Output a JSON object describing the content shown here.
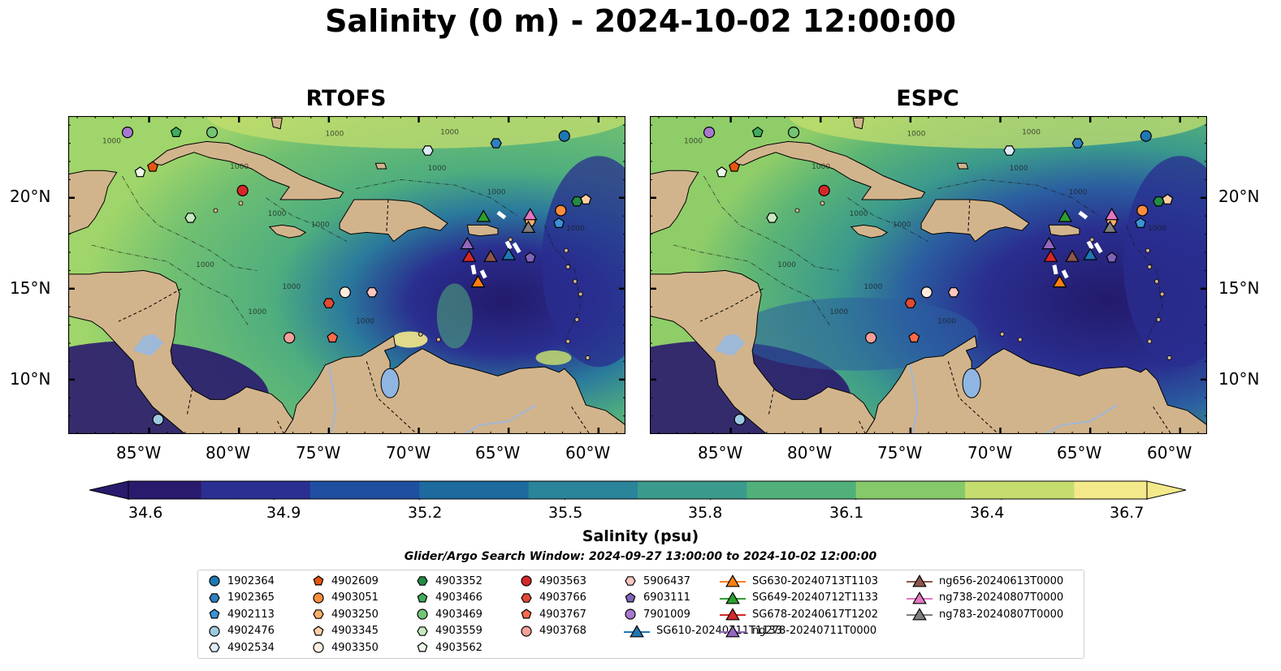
{
  "title": "Salinity (0 m) - 2024-10-02 12:00:00",
  "panels": [
    {
      "title": "RTOFS"
    },
    {
      "title": "ESPC"
    }
  ],
  "map": {
    "lon_range": [
      -89.5,
      -58.5
    ],
    "lat_range": [
      7.0,
      24.5
    ],
    "lon_ticks": [
      "85°W",
      "80°W",
      "75°W",
      "70°W",
      "65°W",
      "60°W"
    ],
    "lon_tick_values": [
      -85,
      -80,
      -75,
      -70,
      -65,
      -60
    ],
    "lat_ticks": [
      "20°N",
      "15°N",
      "10°N"
    ],
    "lat_tick_values": [
      20,
      15,
      10
    ],
    "land_color": "#d2b48c",
    "contour_label": "1000"
  },
  "colorbar": {
    "label": "Salinity (psu)",
    "min": 34.6,
    "max": 36.7,
    "ticks": [
      "34.6",
      "34.9",
      "35.2",
      "35.5",
      "35.8",
      "36.1",
      "36.4",
      "36.7"
    ],
    "colors": [
      "#2a1a6e",
      "#2b2f91",
      "#1f4fa0",
      "#1d6a9e",
      "#2a849a",
      "#3a9b8c",
      "#51b07a",
      "#86c96a",
      "#c4dd6e",
      "#f4e98a"
    ],
    "extend": "both"
  },
  "search_window": "Glider/Argo Search Window: 2024-09-27 13:00:00 to 2024-10-02 12:00:00",
  "legend": [
    {
      "label": "1902364",
      "marker": "circle",
      "color": "#1f77b4",
      "lon": -61.9,
      "lat": 23.4
    },
    {
      "label": "1902365",
      "marker": "hexagon",
      "color": "#2f80c0",
      "lon": -65.7,
      "lat": 23.0
    },
    {
      "label": "4902113",
      "marker": "pentagon",
      "color": "#3a93d6",
      "lon": -62.2,
      "lat": 18.6
    },
    {
      "label": "4902476",
      "marker": "circle",
      "color": "#9ecae1",
      "lon": -84.5,
      "lat": 7.8
    },
    {
      "label": "4902534",
      "marker": "hexagon",
      "color": "#deebf7",
      "lon": -69.5,
      "lat": 22.6
    },
    {
      "label": "4902609",
      "marker": "pentagon",
      "color": "#e6550d",
      "lon": -84.8,
      "lat": 21.7
    },
    {
      "label": "4903051",
      "marker": "circle",
      "color": "#fd8d3c",
      "lon": -62.1,
      "lat": 19.3
    },
    {
      "label": "4903250",
      "marker": "hexagon",
      "color": "#fdae6b",
      "lon": -63.8,
      "lat": 18.7
    },
    {
      "label": "4903345",
      "marker": "pentagon",
      "color": "#fdd0a2",
      "lon": -60.7,
      "lat": 19.9
    },
    {
      "label": "4903350",
      "marker": "circle",
      "color": "#feedde",
      "lon": -74.1,
      "lat": 14.8
    },
    {
      "label": "4903352",
      "marker": "hexagon",
      "color": "#238b45",
      "lon": -61.2,
      "lat": 19.8
    },
    {
      "label": "4903466",
      "marker": "pentagon",
      "color": "#41ab5d",
      "lon": -83.5,
      "lat": 23.6
    },
    {
      "label": "4903469",
      "marker": "circle",
      "color": "#74c476",
      "lon": -81.5,
      "lat": 23.6
    },
    {
      "label": "4903559",
      "marker": "hexagon",
      "color": "#c7e9c0",
      "lon": -82.7,
      "lat": 18.9
    },
    {
      "label": "4903562",
      "marker": "pentagon",
      "color": "#edf8e9",
      "lon": -85.5,
      "lat": 21.4
    },
    {
      "label": "4903563",
      "marker": "circle",
      "color": "#d62728",
      "lon": -79.8,
      "lat": 20.4
    },
    {
      "label": "4903766",
      "marker": "hexagon",
      "color": "#e34a33",
      "lon": -75.0,
      "lat": 14.2
    },
    {
      "label": "4903767",
      "marker": "pentagon",
      "color": "#fb6a4a",
      "lon": -74.8,
      "lat": 12.3
    },
    {
      "label": "4903768",
      "marker": "circle",
      "color": "#f4a09a",
      "lon": -77.2,
      "lat": 12.3
    },
    {
      "label": "5906437",
      "marker": "hexagon",
      "color": "#fcc5c0",
      "lon": -72.6,
      "lat": 14.8
    },
    {
      "label": "6903111",
      "marker": "pentagon",
      "color": "#8064b8",
      "lon": -63.8,
      "lat": 16.7
    },
    {
      "label": "7901009",
      "marker": "circle",
      "color": "#a878d0",
      "lon": -86.2,
      "lat": 23.6
    },
    {
      "label": "SG610-20240711T1133",
      "marker": "triangle",
      "color": "#1f77b4",
      "lon": -65.0,
      "lat": 16.9
    },
    {
      "label": "SG630-20240713T1103",
      "marker": "triangle",
      "color": "#ff7f0e",
      "lon": -66.7,
      "lat": 15.4
    },
    {
      "label": "SG649-20240712T1133",
      "marker": "triangle",
      "color": "#2ca02c",
      "lon": -66.4,
      "lat": 19.0
    },
    {
      "label": "SG678-20240617T1202",
      "marker": "triangle",
      "color": "#d62728",
      "lon": -67.2,
      "lat": 16.8
    },
    {
      "label": "ng278-20240711T0000",
      "marker": "triangle",
      "color": "#9467bd",
      "lon": -67.3,
      "lat": 17.5
    },
    {
      "label": "ng656-20240613T0000",
      "marker": "triangle",
      "color": "#8c564b",
      "lon": -66.0,
      "lat": 16.8
    },
    {
      "label": "ng738-20240807T0000",
      "marker": "triangle",
      "color": "#e377c2",
      "lon": -63.8,
      "lat": 19.1
    },
    {
      "label": "ng783-20240807T0000",
      "marker": "triangle",
      "color": "#7f7f7f",
      "lon": -63.9,
      "lat": 18.4
    }
  ]
}
